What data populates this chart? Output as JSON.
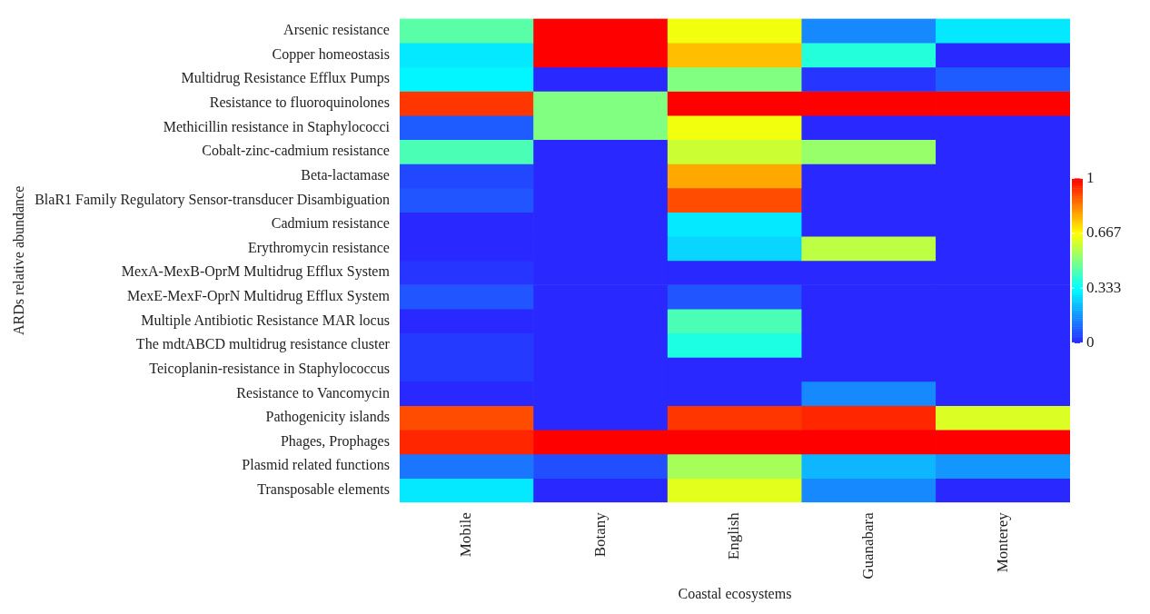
{
  "chart_data": {
    "type": "heatmap",
    "xlabel": "Coastal ecosystems",
    "ylabel": "ARDs relative abundance",
    "categories": [
      "Mobile",
      "Botany",
      "English",
      "Guanabara",
      "Monterey"
    ],
    "y_categories": [
      "Arsenic resistance",
      "Copper homeostasis",
      "Multidrug Resistance Efflux Pumps",
      "Resistance to fluoroquinolones",
      "Methicillin resistance in Staphylococci",
      "Cobalt-zinc-cadmium resistance",
      "Beta-lactamase",
      "BlaR1 Family Regulatory Sensor-transducer Disambiguation",
      "Cadmium resistance",
      "Erythromycin resistance",
      "MexA-MexB-OprM Multidrug Efflux System",
      "MexE-MexF-OprN Multidrug Efflux System",
      "Multiple Antibiotic Resistance MAR locus",
      "The mdtABCD multidrug resistance cluster",
      "Teicoplanin-resistance in Staphylococcus",
      "Resistance to Vancomycin",
      "Pathogenicity islands",
      "Phages, Prophages",
      "Plasmid related functions",
      "Transposable elements"
    ],
    "cells": [
      [
        0.45,
        1,
        0.65,
        0.15,
        0.3
      ],
      [
        0.3,
        1,
        0.75,
        0.38,
        0
      ],
      [
        0.32,
        0,
        0.5,
        0.02,
        0.08
      ],
      [
        0.93,
        0.5,
        1,
        1,
        1
      ],
      [
        0.08,
        0.5,
        0.65,
        0,
        0
      ],
      [
        0.43,
        0,
        0.6,
        0.53,
        0
      ],
      [
        0.05,
        0,
        0.78,
        0,
        0
      ],
      [
        0.07,
        0,
        0.9,
        0,
        0
      ],
      [
        0,
        0,
        0.3,
        0,
        0
      ],
      [
        0,
        0,
        0.27,
        0.58,
        0
      ],
      [
        0.02,
        0,
        0,
        0,
        0
      ],
      [
        0.07,
        0,
        0.07,
        0,
        0
      ],
      [
        0,
        0,
        0.43,
        0,
        0
      ],
      [
        0.03,
        0,
        0.37,
        0,
        0
      ],
      [
        0.03,
        0,
        0,
        0,
        0
      ],
      [
        0,
        0,
        0,
        0.15,
        0
      ],
      [
        0.9,
        0,
        0.93,
        0.95,
        0.62
      ],
      [
        0.95,
        1,
        1,
        1,
        1
      ],
      [
        0.12,
        0.06,
        0.55,
        0.22,
        0.17
      ],
      [
        0.3,
        0,
        0.63,
        0.15,
        0
      ]
    ],
    "clim": [
      0,
      1
    ],
    "cticks": [
      0,
      0.333,
      0.667,
      1
    ]
  }
}
